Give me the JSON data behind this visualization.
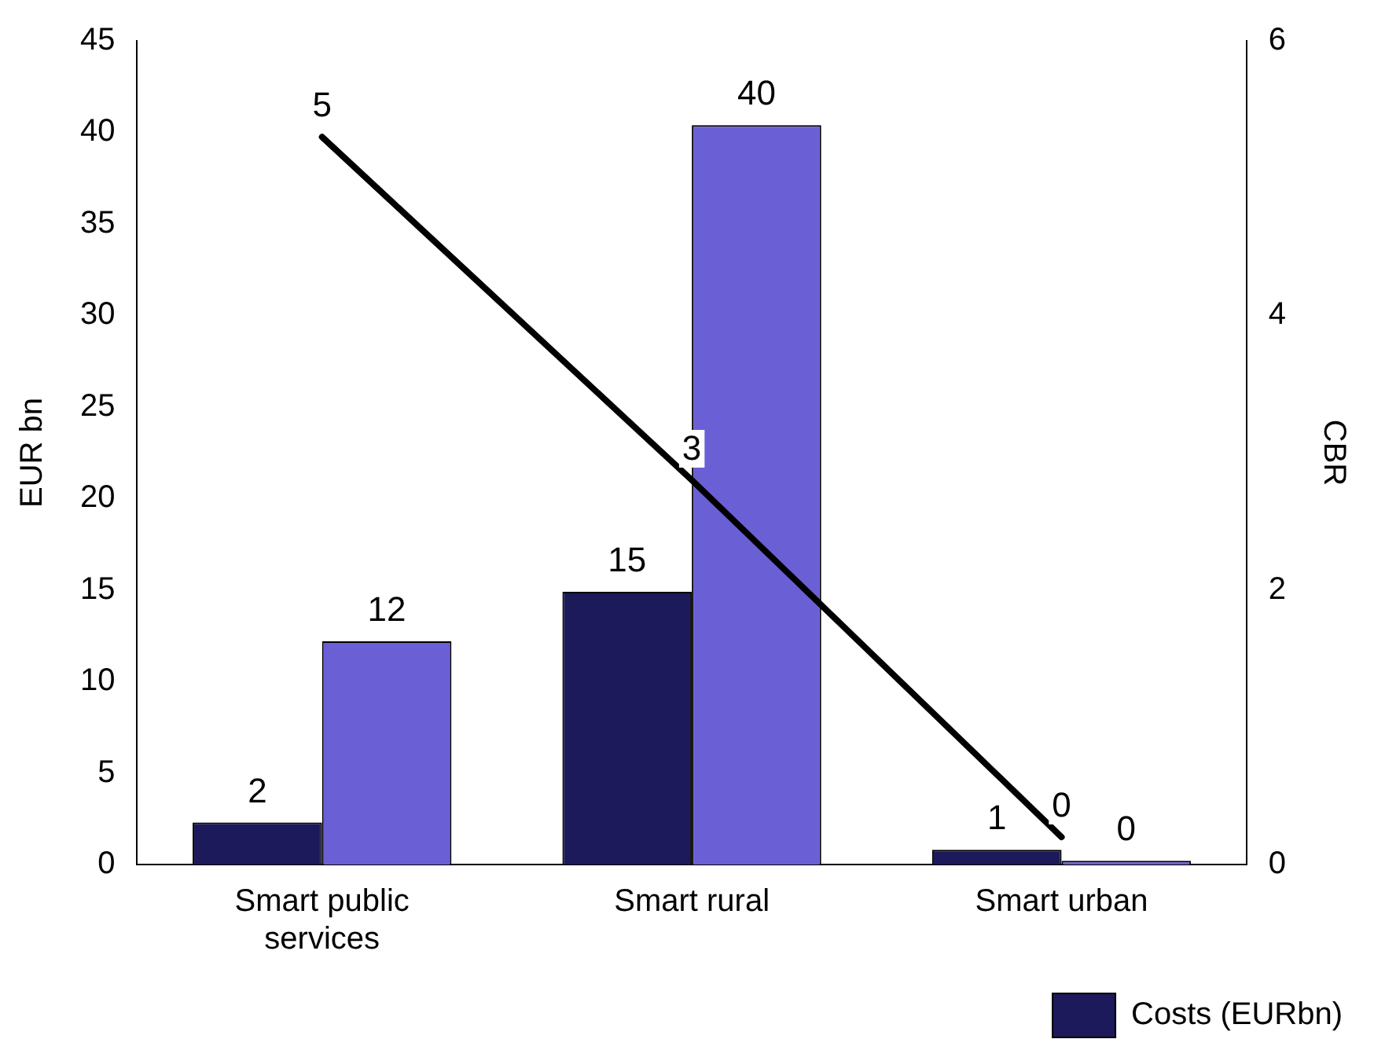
{
  "chart_data": {
    "type": "bar",
    "ylabel": "EUR bn",
    "y2label": "CBR",
    "categories": [
      "Smart public services",
      "Smart rural",
      "Smart urban"
    ],
    "series": [
      {
        "name": "Costs (EURbn)",
        "color": "#1c1a5a",
        "values": [
          2.3,
          14.9,
          0.8
        ],
        "value_labels": [
          "2",
          "15",
          "1"
        ]
      },
      {
        "color": "#6a5fd4",
        "values": [
          12.2,
          40.4,
          0.2
        ],
        "value_labels": [
          "12",
          "40",
          "0"
        ]
      },
      {
        "type": "line",
        "axis": "y2",
        "color": "#000000",
        "values": [
          5.3,
          2.8,
          0.2
        ],
        "value_labels": [
          "5",
          "3",
          "0"
        ]
      }
    ],
    "ylim": [
      0,
      45
    ],
    "yticks": [
      0,
      5,
      10,
      15,
      20,
      25,
      30,
      35,
      40,
      45
    ],
    "y2lim": [
      0,
      6
    ],
    "y2ticks": [
      0,
      2,
      4,
      6
    ],
    "grid": false,
    "legend": "bottom right",
    "marker": "none"
  }
}
